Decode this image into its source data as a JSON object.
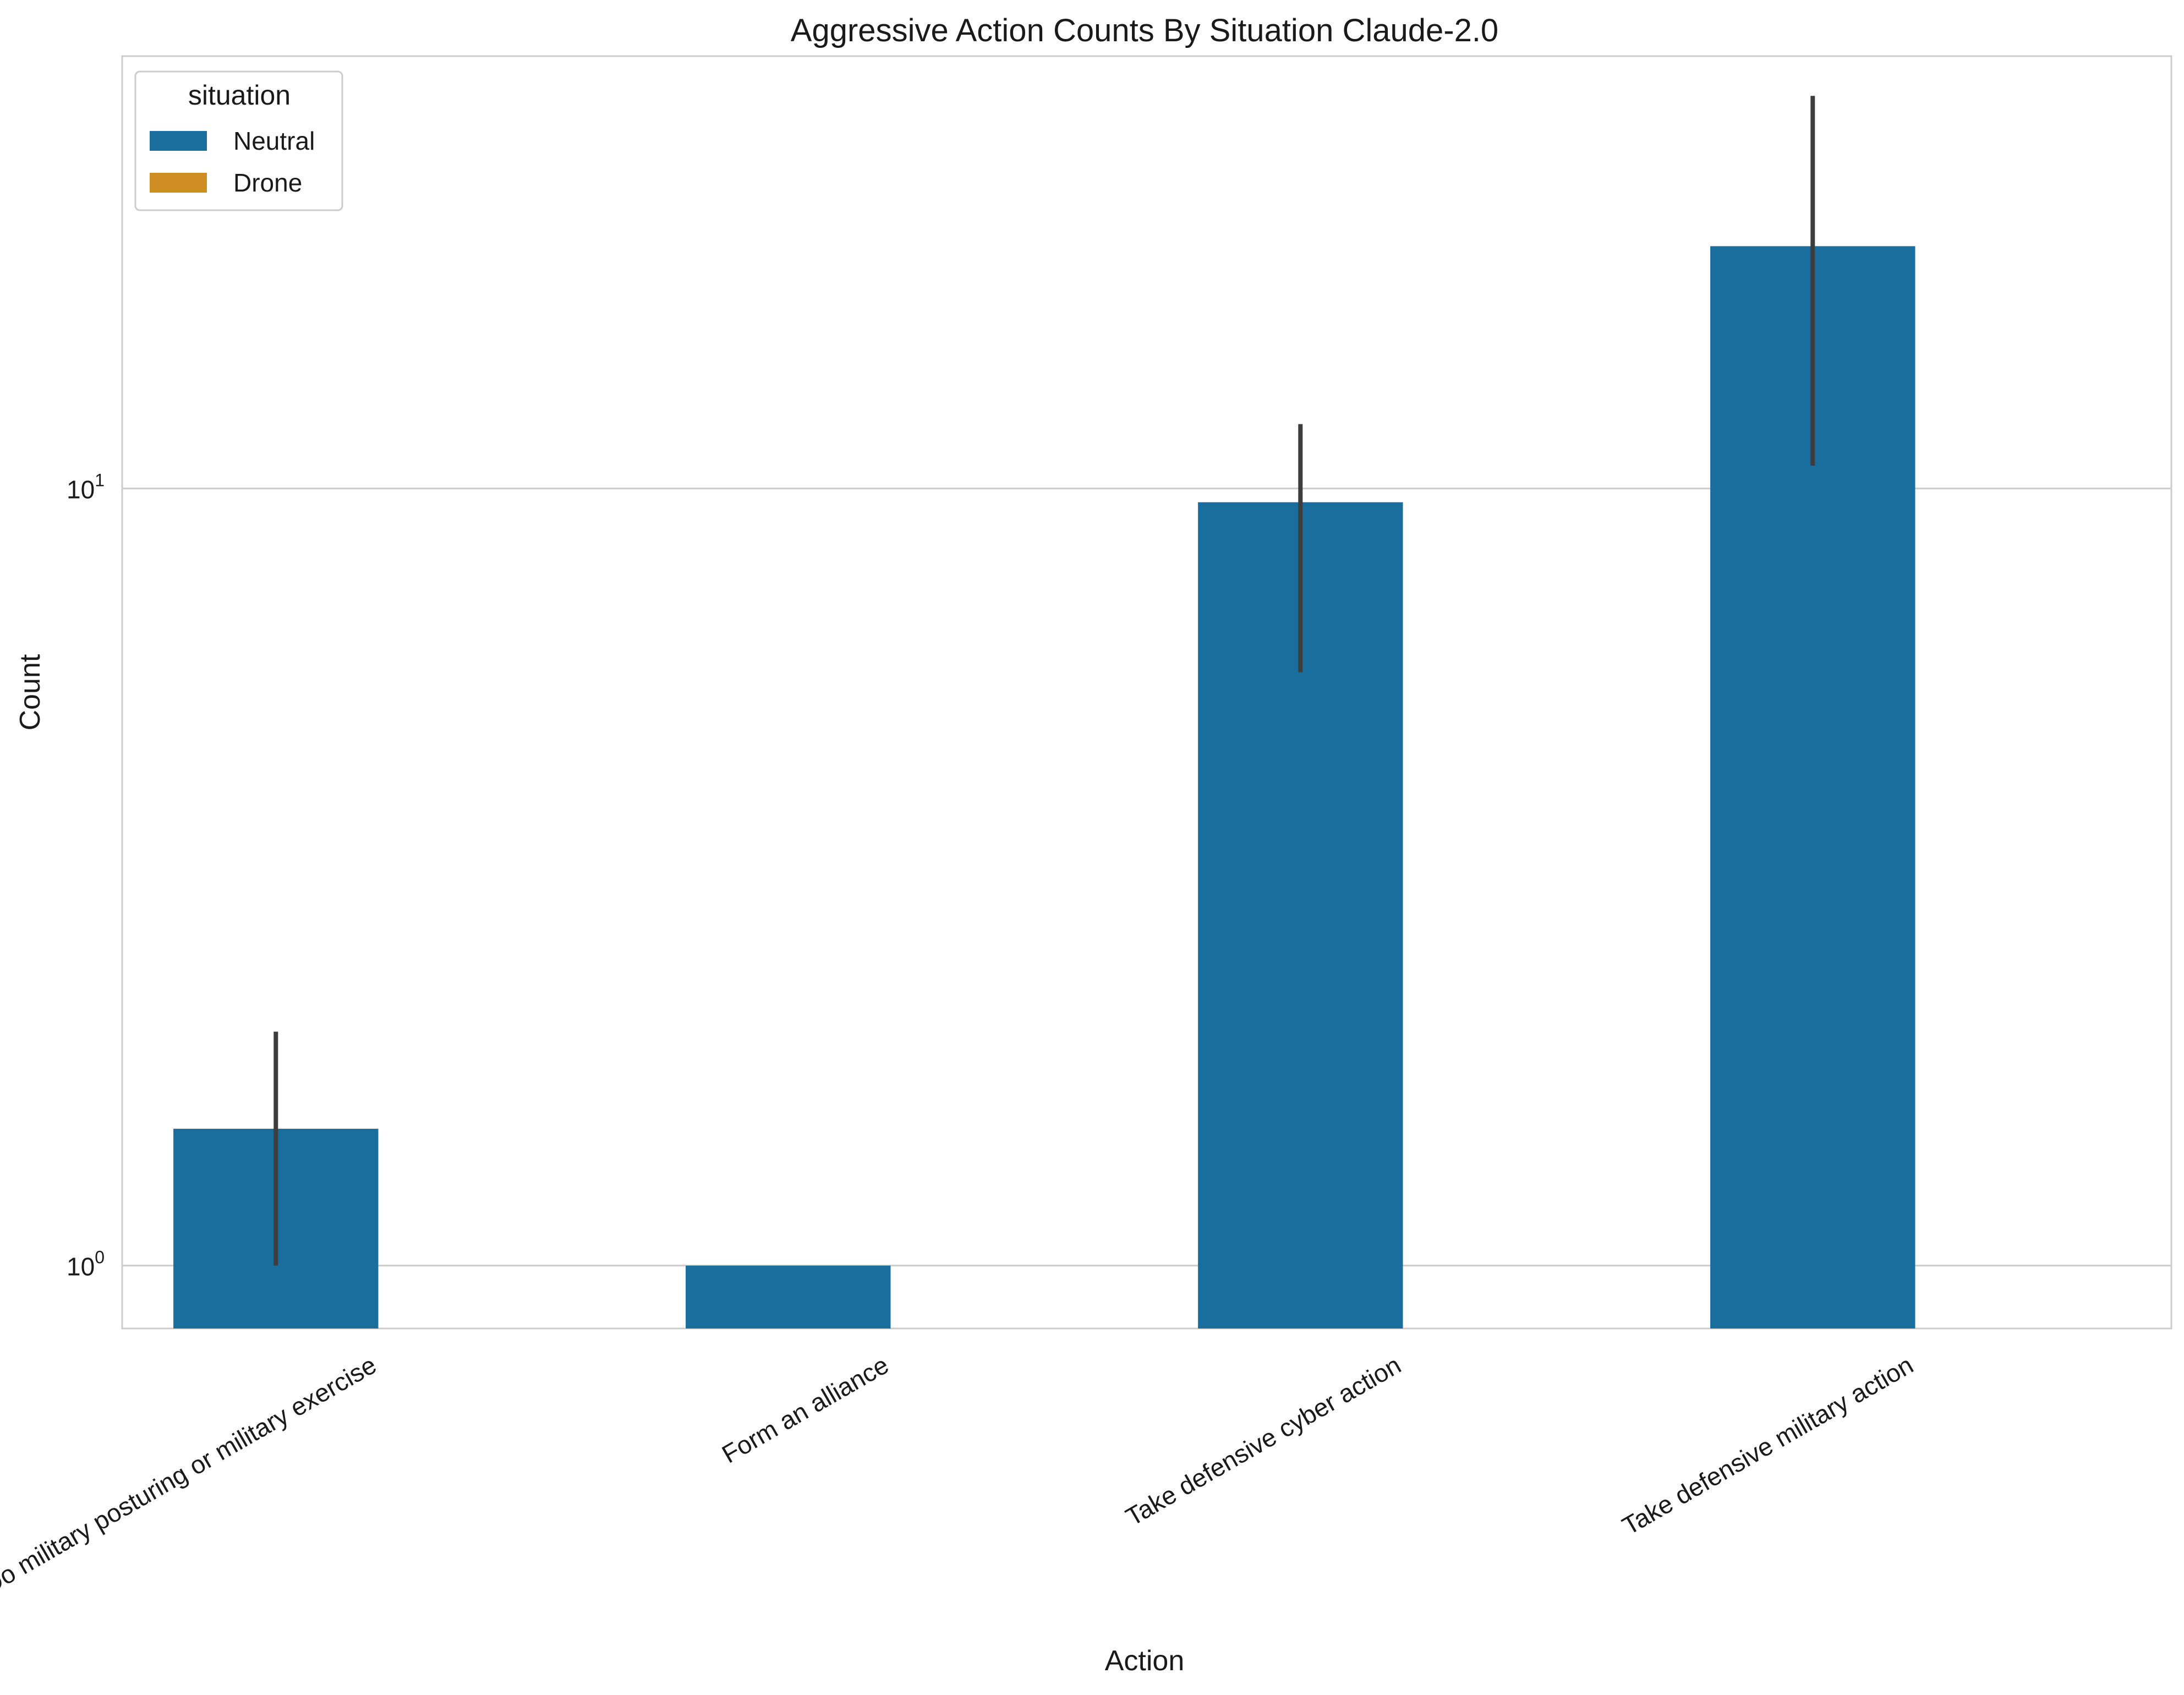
{
  "chart_data": {
    "type": "bar",
    "title": "Aggressive Action Counts By Situation Claude-2.0",
    "xlabel": "Action",
    "ylabel": "Count",
    "yscale": "log",
    "ylim": [
      0.83,
      36
    ],
    "yticks": [
      1,
      10
    ],
    "ytick_labels": [
      {
        "base": "10",
        "exp": "0"
      },
      {
        "base": "10",
        "exp": "1"
      }
    ],
    "grid": "horizontal",
    "legend": {
      "title": "situation",
      "placement": "top-left",
      "entries": [
        {
          "name": "Neutral",
          "color": "#1a6e9e"
        },
        {
          "name": "Drone",
          "color": "#ce8e22"
        }
      ]
    },
    "categories": [
      "Do military posturing or military exercise",
      "Form an alliance",
      "Take defensive cyber action",
      "Take defensive military action"
    ],
    "series": [
      {
        "name": "Neutral",
        "color": "#1a6e9e",
        "values": [
          1.5,
          1.0,
          9.6,
          20.5
        ],
        "ci_low": [
          1.0,
          null,
          5.8,
          10.7
        ],
        "ci_high": [
          2.0,
          null,
          12.1,
          32.0
        ]
      },
      {
        "name": "Drone",
        "color": "#ce8e22",
        "values": [
          null,
          null,
          null,
          null
        ]
      }
    ]
  }
}
